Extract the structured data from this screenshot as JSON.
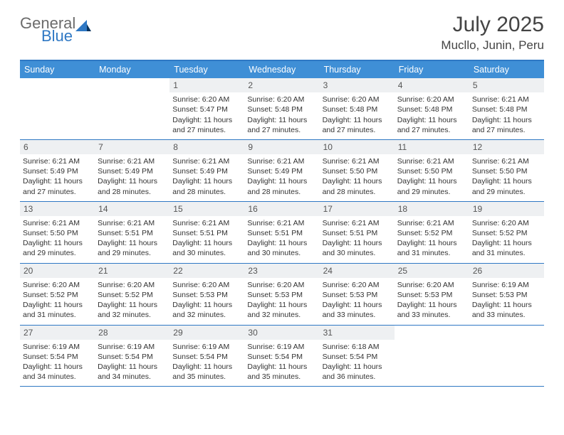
{
  "logo": {
    "text1": "General",
    "text2": "Blue"
  },
  "title": "July 2025",
  "location": "Mucllo, Junin, Peru",
  "colors": {
    "header_bg": "#3f8fd6",
    "border": "#2f78c4",
    "daynum_bg": "#eef0f2",
    "text": "#333333",
    "logo_gray": "#6b6b6b",
    "logo_blue": "#2f78c4"
  },
  "weekdays": [
    "Sunday",
    "Monday",
    "Tuesday",
    "Wednesday",
    "Thursday",
    "Friday",
    "Saturday"
  ],
  "leading_blanks": 2,
  "days": [
    {
      "n": 1,
      "sr": "6:20 AM",
      "ss": "5:47 PM",
      "dl": "11 hours and 27 minutes."
    },
    {
      "n": 2,
      "sr": "6:20 AM",
      "ss": "5:48 PM",
      "dl": "11 hours and 27 minutes."
    },
    {
      "n": 3,
      "sr": "6:20 AM",
      "ss": "5:48 PM",
      "dl": "11 hours and 27 minutes."
    },
    {
      "n": 4,
      "sr": "6:20 AM",
      "ss": "5:48 PM",
      "dl": "11 hours and 27 minutes."
    },
    {
      "n": 5,
      "sr": "6:21 AM",
      "ss": "5:48 PM",
      "dl": "11 hours and 27 minutes."
    },
    {
      "n": 6,
      "sr": "6:21 AM",
      "ss": "5:49 PM",
      "dl": "11 hours and 27 minutes."
    },
    {
      "n": 7,
      "sr": "6:21 AM",
      "ss": "5:49 PM",
      "dl": "11 hours and 28 minutes."
    },
    {
      "n": 8,
      "sr": "6:21 AM",
      "ss": "5:49 PM",
      "dl": "11 hours and 28 minutes."
    },
    {
      "n": 9,
      "sr": "6:21 AM",
      "ss": "5:49 PM",
      "dl": "11 hours and 28 minutes."
    },
    {
      "n": 10,
      "sr": "6:21 AM",
      "ss": "5:50 PM",
      "dl": "11 hours and 28 minutes."
    },
    {
      "n": 11,
      "sr": "6:21 AM",
      "ss": "5:50 PM",
      "dl": "11 hours and 29 minutes."
    },
    {
      "n": 12,
      "sr": "6:21 AM",
      "ss": "5:50 PM",
      "dl": "11 hours and 29 minutes."
    },
    {
      "n": 13,
      "sr": "6:21 AM",
      "ss": "5:50 PM",
      "dl": "11 hours and 29 minutes."
    },
    {
      "n": 14,
      "sr": "6:21 AM",
      "ss": "5:51 PM",
      "dl": "11 hours and 29 minutes."
    },
    {
      "n": 15,
      "sr": "6:21 AM",
      "ss": "5:51 PM",
      "dl": "11 hours and 30 minutes."
    },
    {
      "n": 16,
      "sr": "6:21 AM",
      "ss": "5:51 PM",
      "dl": "11 hours and 30 minutes."
    },
    {
      "n": 17,
      "sr": "6:21 AM",
      "ss": "5:51 PM",
      "dl": "11 hours and 30 minutes."
    },
    {
      "n": 18,
      "sr": "6:21 AM",
      "ss": "5:52 PM",
      "dl": "11 hours and 31 minutes."
    },
    {
      "n": 19,
      "sr": "6:20 AM",
      "ss": "5:52 PM",
      "dl": "11 hours and 31 minutes."
    },
    {
      "n": 20,
      "sr": "6:20 AM",
      "ss": "5:52 PM",
      "dl": "11 hours and 31 minutes."
    },
    {
      "n": 21,
      "sr": "6:20 AM",
      "ss": "5:52 PM",
      "dl": "11 hours and 32 minutes."
    },
    {
      "n": 22,
      "sr": "6:20 AM",
      "ss": "5:53 PM",
      "dl": "11 hours and 32 minutes."
    },
    {
      "n": 23,
      "sr": "6:20 AM",
      "ss": "5:53 PM",
      "dl": "11 hours and 32 minutes."
    },
    {
      "n": 24,
      "sr": "6:20 AM",
      "ss": "5:53 PM",
      "dl": "11 hours and 33 minutes."
    },
    {
      "n": 25,
      "sr": "6:20 AM",
      "ss": "5:53 PM",
      "dl": "11 hours and 33 minutes."
    },
    {
      "n": 26,
      "sr": "6:19 AM",
      "ss": "5:53 PM",
      "dl": "11 hours and 33 minutes."
    },
    {
      "n": 27,
      "sr": "6:19 AM",
      "ss": "5:54 PM",
      "dl": "11 hours and 34 minutes."
    },
    {
      "n": 28,
      "sr": "6:19 AM",
      "ss": "5:54 PM",
      "dl": "11 hours and 34 minutes."
    },
    {
      "n": 29,
      "sr": "6:19 AM",
      "ss": "5:54 PM",
      "dl": "11 hours and 35 minutes."
    },
    {
      "n": 30,
      "sr": "6:19 AM",
      "ss": "5:54 PM",
      "dl": "11 hours and 35 minutes."
    },
    {
      "n": 31,
      "sr": "6:18 AM",
      "ss": "5:54 PM",
      "dl": "11 hours and 36 minutes."
    }
  ],
  "labels": {
    "sunrise": "Sunrise:",
    "sunset": "Sunset:",
    "daylight": "Daylight:"
  }
}
